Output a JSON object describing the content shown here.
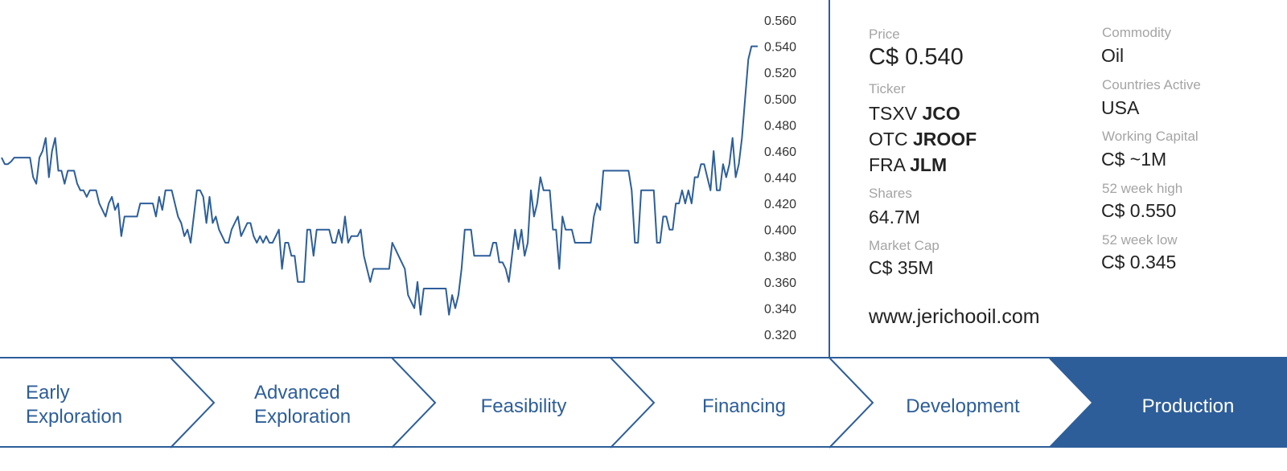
{
  "chart_data": {
    "type": "line",
    "title": "",
    "xlabel": "",
    "ylabel": "",
    "y_ticks": [
      "0.560",
      "0.540",
      "0.520",
      "0.500",
      "0.480",
      "0.460",
      "0.440",
      "0.420",
      "0.400",
      "0.380",
      "0.360",
      "0.340",
      "0.320"
    ],
    "ylim": [
      0.31,
      0.565
    ],
    "series": [
      {
        "color": "#2d5e99",
        "values": [
          0.455,
          0.45,
          0.45,
          0.452,
          0.455,
          0.455,
          0.455,
          0.455,
          0.455,
          0.455,
          0.44,
          0.435,
          0.455,
          0.46,
          0.47,
          0.44,
          0.46,
          0.47,
          0.445,
          0.445,
          0.435,
          0.445,
          0.445,
          0.445,
          0.435,
          0.43,
          0.43,
          0.425,
          0.43,
          0.43,
          0.43,
          0.42,
          0.415,
          0.41,
          0.42,
          0.425,
          0.415,
          0.42,
          0.395,
          0.41,
          0.41,
          0.41,
          0.41,
          0.41,
          0.42,
          0.42,
          0.42,
          0.42,
          0.42,
          0.41,
          0.425,
          0.415,
          0.43,
          0.43,
          0.43,
          0.42,
          0.41,
          0.405,
          0.395,
          0.4,
          0.39,
          0.41,
          0.43,
          0.43,
          0.425,
          0.405,
          0.425,
          0.405,
          0.41,
          0.4,
          0.395,
          0.39,
          0.39,
          0.4,
          0.405,
          0.41,
          0.395,
          0.4,
          0.405,
          0.405,
          0.395,
          0.39,
          0.395,
          0.39,
          0.395,
          0.39,
          0.39,
          0.395,
          0.4,
          0.37,
          0.39,
          0.39,
          0.38,
          0.38,
          0.36,
          0.36,
          0.36,
          0.4,
          0.4,
          0.38,
          0.4,
          0.4,
          0.4,
          0.4,
          0.4,
          0.39,
          0.39,
          0.4,
          0.39,
          0.41,
          0.39,
          0.395,
          0.395,
          0.395,
          0.4,
          0.38,
          0.37,
          0.36,
          0.37,
          0.37,
          0.37,
          0.37,
          0.37,
          0.37,
          0.39,
          0.385,
          0.38,
          0.375,
          0.37,
          0.35,
          0.345,
          0.34,
          0.36,
          0.335,
          0.355,
          0.355,
          0.355,
          0.355,
          0.355,
          0.355,
          0.355,
          0.355,
          0.335,
          0.35,
          0.34,
          0.35,
          0.37,
          0.4,
          0.4,
          0.4,
          0.38,
          0.38,
          0.38,
          0.38,
          0.38,
          0.38,
          0.39,
          0.39,
          0.375,
          0.375,
          0.37,
          0.36,
          0.38,
          0.4,
          0.385,
          0.4,
          0.38,
          0.39,
          0.43,
          0.41,
          0.42,
          0.44,
          0.43,
          0.43,
          0.43,
          0.4,
          0.4,
          0.37,
          0.41,
          0.4,
          0.4,
          0.4,
          0.39,
          0.39,
          0.39,
          0.39,
          0.39,
          0.39,
          0.41,
          0.42,
          0.415,
          0.445,
          0.445,
          0.445,
          0.445,
          0.445,
          0.445,
          0.445,
          0.445,
          0.445,
          0.43,
          0.39,
          0.39,
          0.43,
          0.43,
          0.43,
          0.43,
          0.43,
          0.39,
          0.39,
          0.41,
          0.41,
          0.4,
          0.4,
          0.42,
          0.42,
          0.43,
          0.42,
          0.43,
          0.42,
          0.44,
          0.44,
          0.45,
          0.45,
          0.44,
          0.43,
          0.46,
          0.43,
          0.43,
          0.45,
          0.44,
          0.45,
          0.47,
          0.44,
          0.45,
          0.47,
          0.5,
          0.53,
          0.54,
          0.54,
          0.54
        ]
      }
    ]
  },
  "info": {
    "price_label": "Price",
    "price_value": "C$ 0.540",
    "ticker_label": "Ticker",
    "tickers": [
      {
        "exchange": "TSXV",
        "symbol": "JCO"
      },
      {
        "exchange": "OTC",
        "symbol": "JROOF"
      },
      {
        "exchange": "FRA",
        "symbol": "JLM"
      }
    ],
    "shares_label": "Shares",
    "shares_value": "64.7M",
    "market_cap_label": "Market Cap",
    "market_cap_value": "C$ 35M",
    "website": "www.jerichooil.com",
    "commodity_label": "Commodity",
    "commodity_value": "Oil",
    "countries_label": "Countries Active",
    "countries_value": "USA",
    "working_capital_label": "Working Capital",
    "working_capital_value": "C$ ~1M",
    "high_label": "52 week high",
    "high_value": "C$ 0.550",
    "low_label": "52 week low",
    "low_value": "C$ 0.345"
  },
  "stages": [
    {
      "line1": "Early",
      "line2": "Exploration",
      "active": false
    },
    {
      "line1": "Advanced",
      "line2": "Exploration",
      "active": false
    },
    {
      "line1": "Feasibility",
      "line2": "",
      "active": false
    },
    {
      "line1": "Financing",
      "line2": "",
      "active": false
    },
    {
      "line1": "Development",
      "line2": "",
      "active": false
    },
    {
      "line1": "Production",
      "line2": "",
      "active": true
    }
  ],
  "colors": {
    "accent": "#2d5e99",
    "label_gray": "#a4a4a4",
    "text": "#222222"
  }
}
